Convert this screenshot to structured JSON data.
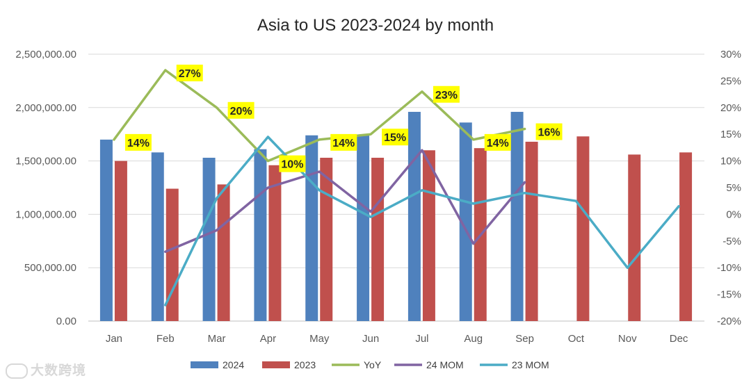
{
  "chart_data": {
    "type": "bar",
    "title": "Asia to US 2023-2024 by month",
    "categories": [
      "Jan",
      "Feb",
      "Mar",
      "Apr",
      "May",
      "Jun",
      "Jul",
      "Aug",
      "Sep",
      "Oct",
      "Nov",
      "Dec"
    ],
    "y_left": {
      "min": 0,
      "max": 2500000,
      "ticks": [
        0,
        500000,
        1000000,
        1500000,
        2000000,
        2500000
      ],
      "tick_labels": [
        "0.00",
        "500,000.00",
        "1,000,000.00",
        "1,500,000.00",
        "2,000,000.00",
        "2,500,000.00"
      ]
    },
    "y_right": {
      "min": -20,
      "max": 30,
      "ticks": [
        -20,
        -15,
        -10,
        -5,
        0,
        5,
        10,
        15,
        20,
        25,
        30
      ],
      "tick_labels": [
        "-20%",
        "-15%",
        "-10%",
        "-5%",
        "0%",
        "5%",
        "10%",
        "15%",
        "20%",
        "25%",
        "30%"
      ]
    },
    "grid": true,
    "legend_position": "bottom",
    "series": [
      {
        "name": "2024",
        "kind": "bar",
        "axis": "left",
        "color": "#4f81bd",
        "values": [
          1700000,
          1580000,
          1530000,
          1610000,
          1740000,
          1740000,
          1960000,
          1860000,
          1960000,
          null,
          null,
          null
        ]
      },
      {
        "name": "2023",
        "kind": "bar",
        "axis": "left",
        "color": "#c0504d",
        "values": [
          1500000,
          1240000,
          1280000,
          1460000,
          1530000,
          1530000,
          1600000,
          1620000,
          1680000,
          1730000,
          1560000,
          1580000
        ]
      },
      {
        "name": "YoY",
        "kind": "line",
        "axis": "right",
        "color": "#9bbb59",
        "values": [
          14,
          27,
          20,
          10,
          14,
          15,
          23,
          14,
          16,
          null,
          null,
          null
        ]
      },
      {
        "name": "24 MOM",
        "kind": "line",
        "axis": "right",
        "color": "#8064a2",
        "values": [
          null,
          -7,
          -3,
          5,
          8,
          0.5,
          12,
          -5.5,
          6,
          null,
          null,
          null
        ]
      },
      {
        "name": "23 MOM",
        "kind": "line",
        "axis": "right",
        "color": "#4bacc6",
        "values": [
          null,
          -17,
          3,
          14.5,
          4.5,
          -0.5,
          4.5,
          2,
          4,
          2.5,
          -10,
          1.5
        ]
      }
    ],
    "yoy_labels": [
      "14%",
      "27%",
      "20%",
      "10%",
      "14%",
      "15%",
      "23%",
      "14%",
      "16%"
    ],
    "label_highlight_color": "#ffff00"
  },
  "watermark": {
    "text": "大数跨境"
  }
}
